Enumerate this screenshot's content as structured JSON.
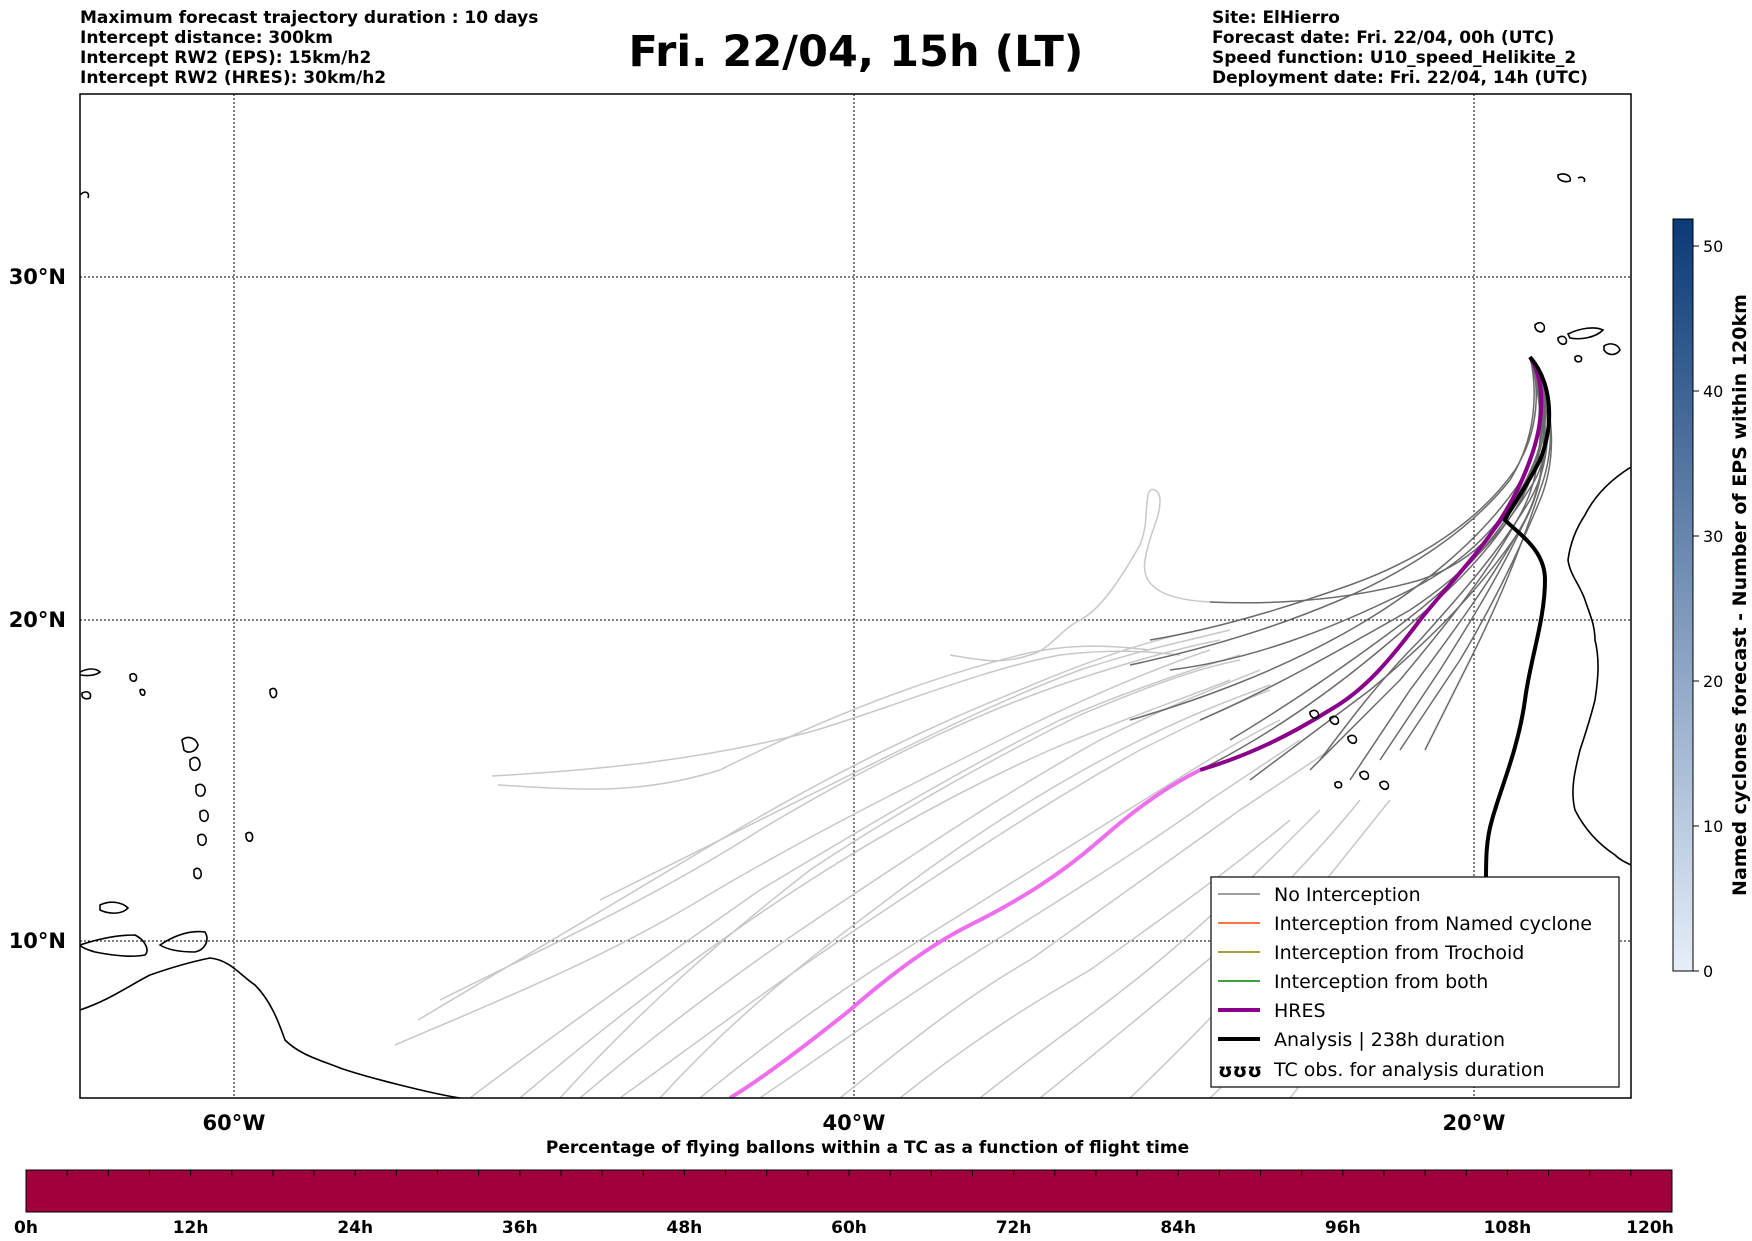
{
  "header": {
    "left_lines": [
      "Maximum forecast trajectory duration : 10 days",
      "Intercept distance: 300km",
      "Intercept RW2 (EPS):  15km/h2",
      "Intercept RW2 (HRES): 30km/h2"
    ],
    "title": "Fri. 22/04, 15h (LT)",
    "right_lines": [
      "Site: ElHierro",
      "Forecast date: Fri. 22/04, 00h (UTC)",
      "Speed function: U10_speed_Helikite_2",
      "Deployment date: Fri. 22/04, 14h (UTC)"
    ]
  },
  "map": {
    "lon_labels": [
      "60°W",
      "40°W",
      "20°W"
    ],
    "lat_labels": [
      "30°N",
      "20°N",
      "10°N"
    ],
    "colors": {
      "eps_near": "#6b6b6b",
      "eps_far": "#c8c8c8",
      "hres_near": "#8b008b",
      "hres_far": "#ee6eee",
      "analysis": "#000000"
    }
  },
  "legend": {
    "items": [
      {
        "label": "No Interception",
        "color": "#808080",
        "style": "thin"
      },
      {
        "label": "Interception from Named cyclone",
        "color": "#ff4500",
        "style": "thin"
      },
      {
        "label": "Interception from Trochoid",
        "color": "#808000",
        "style": "thin"
      },
      {
        "label": "Interception from both",
        "color": "#008000",
        "style": "thin"
      },
      {
        "label": "HRES",
        "color": "#8b008b",
        "style": "thick"
      },
      {
        "label": "Analysis | 238h duration",
        "color": "#000000",
        "style": "thick"
      },
      {
        "label": "TC obs. for analysis duration",
        "color": "#000000",
        "style": "symbol",
        "symbol": "ʊʊʊ"
      }
    ]
  },
  "colorbar": {
    "label": "Named cyclones forecast - Number of EPS within 120km",
    "ticks": [
      "0",
      "10",
      "20",
      "30",
      "40",
      "50"
    ],
    "colors": {
      "low": "#e6eef9",
      "high": "#0a3a78"
    }
  },
  "hbar": {
    "title": "Percentage of flying ballons within a TC as a function of flight time",
    "ticks": [
      "0h",
      "12h",
      "24h",
      "36h",
      "48h",
      "60h",
      "72h",
      "84h",
      "96h",
      "108h",
      "120h"
    ],
    "color": "#a0003c"
  }
}
